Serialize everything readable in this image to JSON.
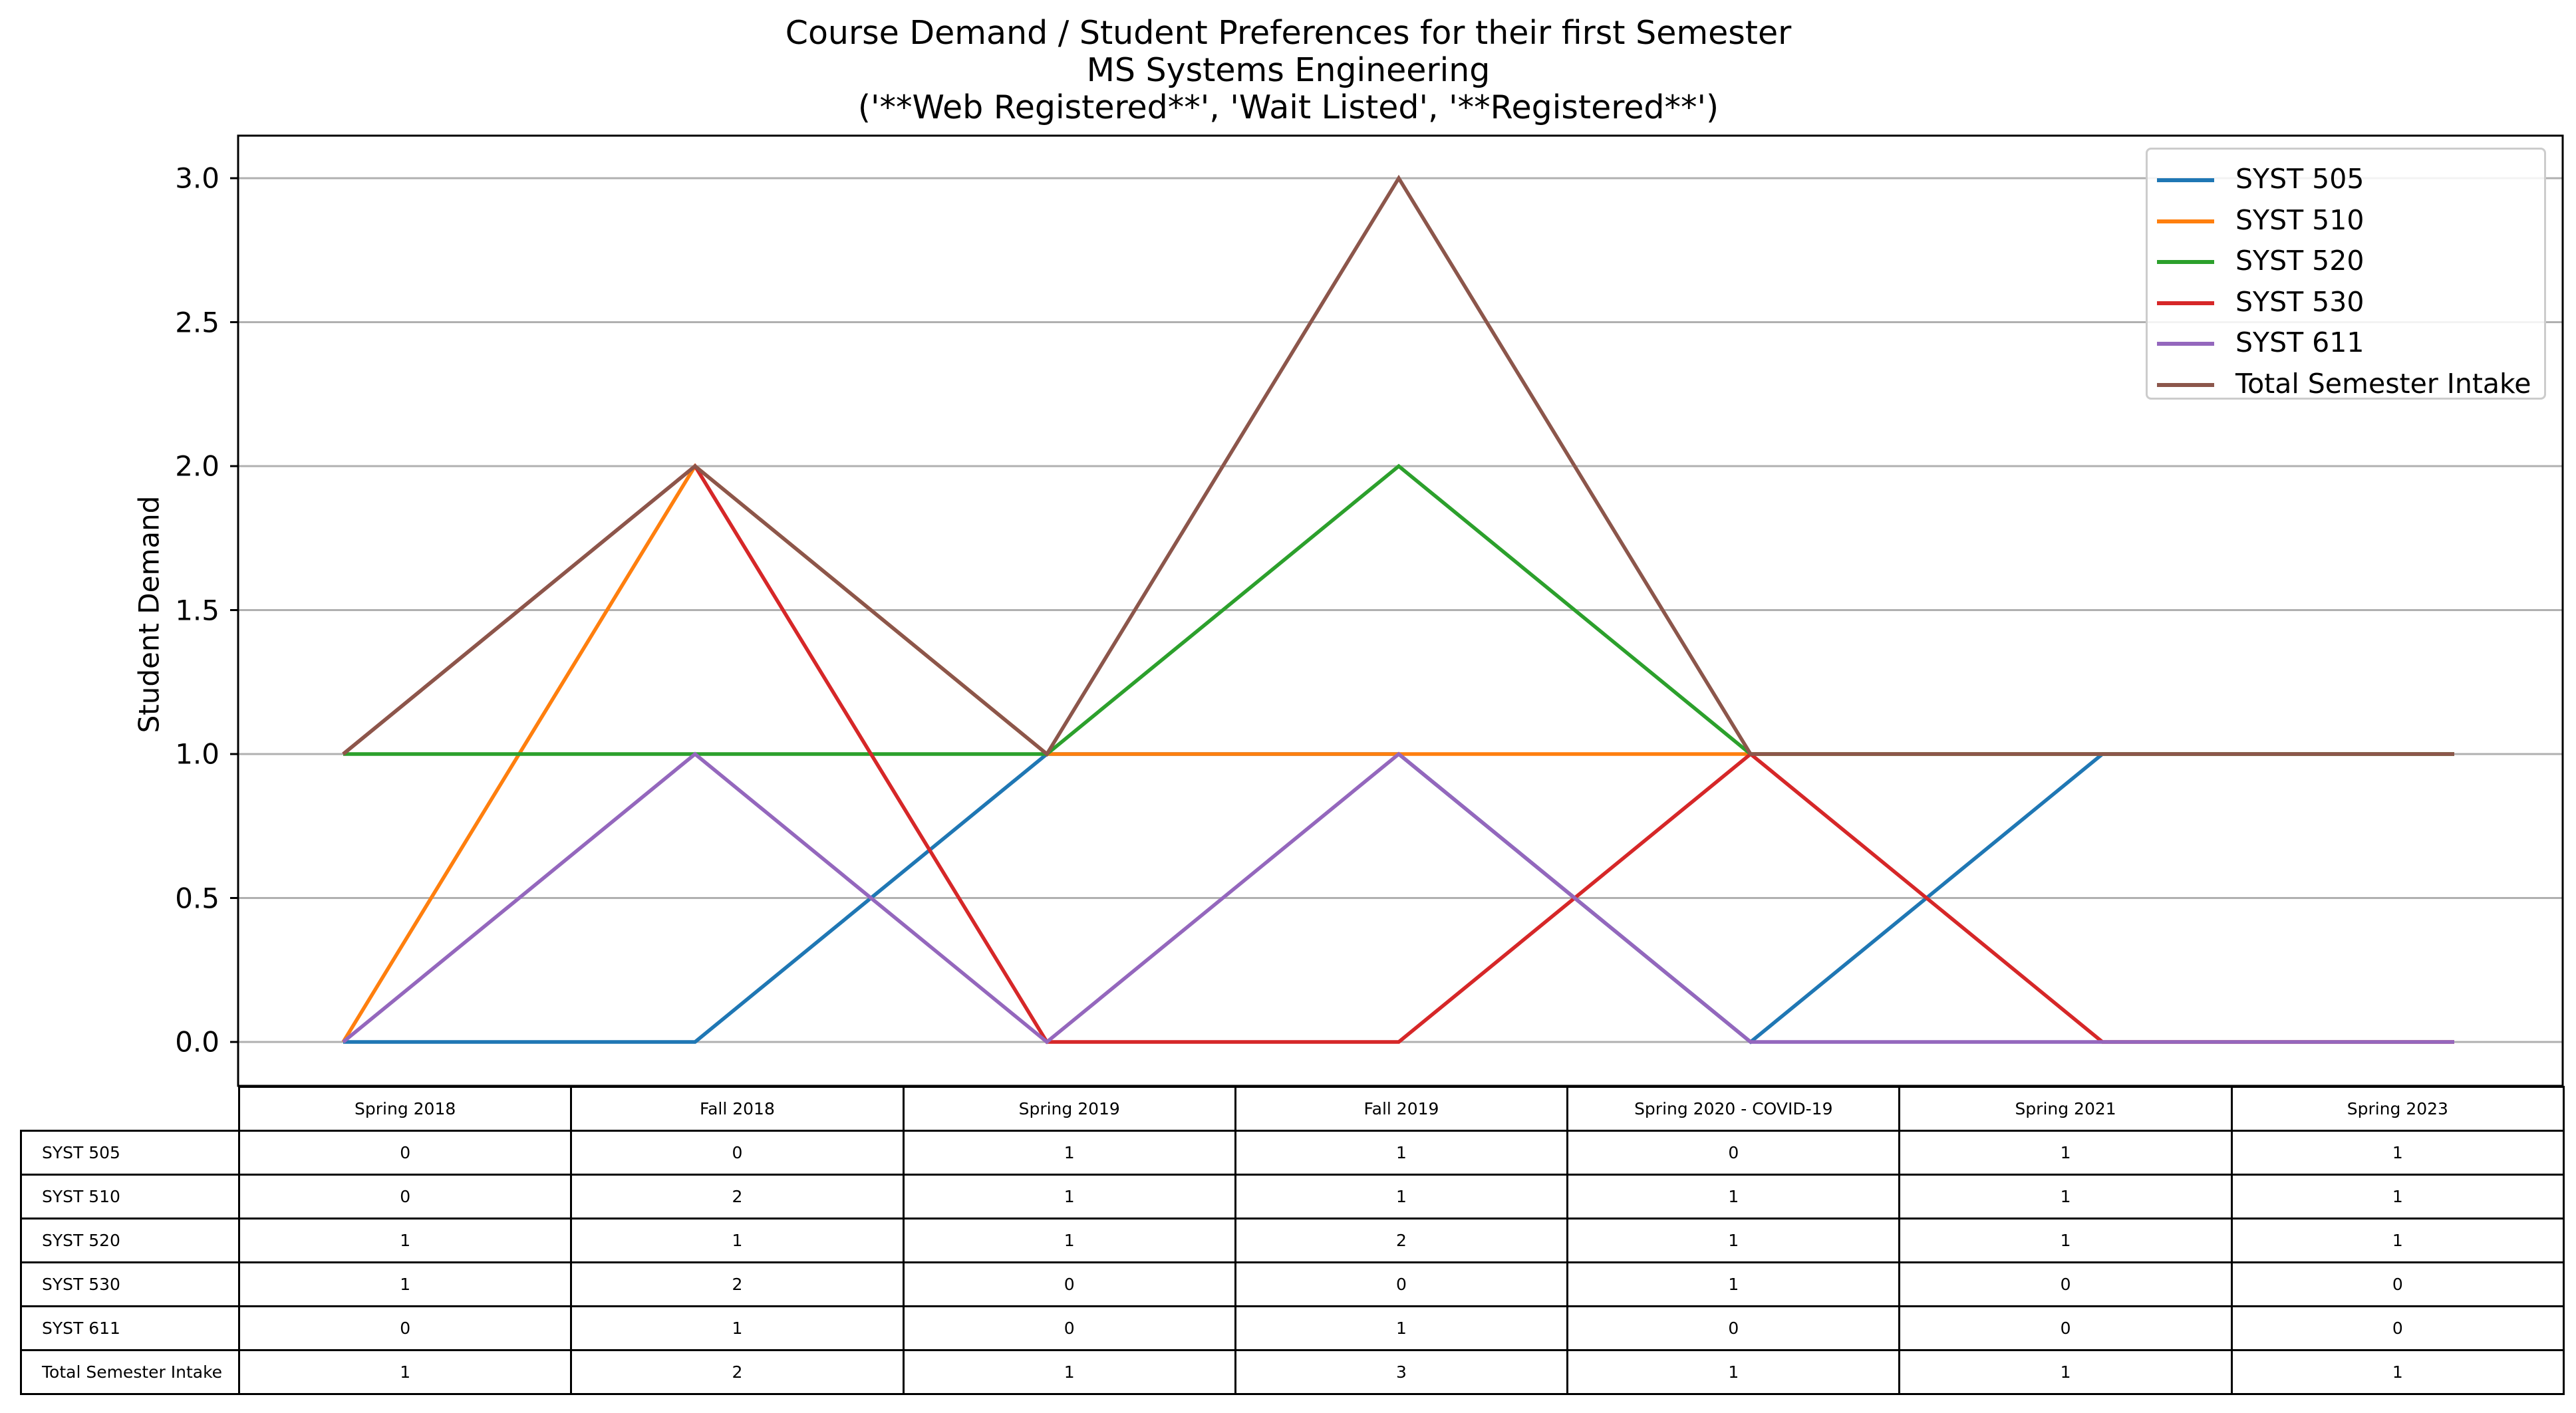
{
  "chart_data": {
    "type": "line",
    "title": [
      "Course Demand / Student Preferences for their first Semester",
      "MS Systems Engineering",
      "('**Web Registered**', 'Wait Listed', '**Registered**')"
    ],
    "xlabel": "",
    "ylabel": "Student Demand",
    "ylim": [
      -0.15,
      3.15
    ],
    "yticks": [
      "0.0",
      "0.5",
      "1.0",
      "1.5",
      "2.0",
      "2.5",
      "3.0"
    ],
    "grid": "horizontal",
    "legend_position": "top-right",
    "categories": [
      "Spring 2018",
      "Fall 2018",
      "Spring 2019",
      "Fall 2019",
      "Spring 2020 - COVID-19",
      "Spring 2021",
      "Spring 2023"
    ],
    "series": [
      {
        "name": "SYST 505",
        "color": "#1f77b4",
        "values": [
          0,
          0,
          1,
          1,
          0,
          1,
          1
        ]
      },
      {
        "name": "SYST 510",
        "color": "#ff7f0e",
        "values": [
          0,
          2,
          1,
          1,
          1,
          1,
          1
        ]
      },
      {
        "name": "SYST 520",
        "color": "#2ca02c",
        "values": [
          1,
          1,
          1,
          2,
          1,
          1,
          1
        ]
      },
      {
        "name": "SYST 530",
        "color": "#d62728",
        "values": [
          1,
          2,
          0,
          0,
          1,
          0,
          0
        ]
      },
      {
        "name": "SYST 611",
        "color": "#9467bd",
        "values": [
          0,
          1,
          0,
          1,
          0,
          0,
          0
        ]
      },
      {
        "name": "Total Semester Intake",
        "color": "#8c564b",
        "values": [
          1,
          2,
          1,
          3,
          1,
          1,
          1
        ]
      }
    ]
  }
}
